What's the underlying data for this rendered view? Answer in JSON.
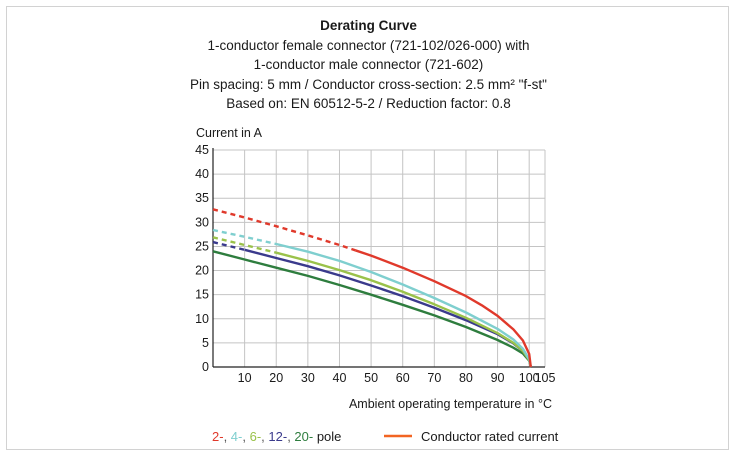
{
  "chart_data": {
    "type": "line",
    "title": "Derating Curve",
    "subtitle_lines": [
      "1-conductor female connector (721-102/026-000) with",
      "1-conductor male connector (721-602)",
      "Pin spacing: 5 mm / Conductor cross-section: 2.5 mm² \"f-st\"",
      "Based on: EN 60512-5-2 / Reduction factor: 0.8"
    ],
    "ylabel": "Current in A",
    "xlabel": "Ambient operating temperature in °C",
    "xlim": [
      0,
      105
    ],
    "ylim": [
      0,
      45
    ],
    "x_ticks": [
      "10",
      "20",
      "30",
      "40",
      "50",
      "60",
      "70",
      "80",
      "90",
      "100",
      "105"
    ],
    "y_ticks": [
      "0",
      "5",
      "10",
      "15",
      "20",
      "25",
      "30",
      "35",
      "40",
      "45"
    ],
    "grid": true,
    "series": [
      {
        "name": "2-",
        "color": "#e0392b",
        "dashed_x": [
          0,
          10,
          20,
          30,
          40,
          45
        ],
        "dashed_y": [
          32.7,
          31.0,
          29.2,
          27.3,
          25.3,
          24.2
        ],
        "solid_x": [
          45,
          50,
          60,
          70,
          80,
          85,
          90,
          95,
          98,
          100,
          100.5
        ],
        "solid_y": [
          24.2,
          23.1,
          20.6,
          17.8,
          14.7,
          12.8,
          10.6,
          7.8,
          5.5,
          2.7,
          0
        ]
      },
      {
        "name": "4-",
        "color": "#7fcfcf",
        "dashed_x": [
          0,
          10,
          20
        ],
        "dashed_y": [
          28.4,
          27.0,
          25.5
        ],
        "solid_x": [
          20,
          30,
          40,
          50,
          60,
          70,
          80,
          90,
          95,
          98,
          100,
          100.5
        ],
        "solid_y": [
          25.5,
          23.9,
          22.0,
          19.7,
          17.1,
          14.3,
          11.3,
          7.9,
          5.7,
          3.8,
          1.6,
          0
        ]
      },
      {
        "name": "6-",
        "color": "#9ac24a",
        "dashed_x": [
          0,
          10,
          20
        ],
        "dashed_y": [
          26.9,
          25.3,
          23.7
        ],
        "solid_x": [
          20,
          30,
          40,
          50,
          60,
          70,
          80,
          90,
          95,
          98,
          100,
          100.5
        ],
        "solid_y": [
          23.7,
          22.0,
          20.1,
          18.0,
          15.6,
          13.0,
          10.2,
          7.0,
          5.0,
          3.3,
          1.4,
          0
        ]
      },
      {
        "name": "12-",
        "color": "#3a3a8c",
        "dashed_x": [
          0,
          10
        ],
        "dashed_y": [
          25.9,
          24.3
        ],
        "solid_x": [
          10,
          20,
          30,
          40,
          50,
          60,
          70,
          80,
          90,
          95,
          98,
          100,
          100.5
        ],
        "solid_y": [
          24.3,
          22.6,
          20.9,
          19.0,
          16.9,
          14.7,
          12.3,
          9.7,
          6.8,
          4.9,
          3.3,
          1.4,
          0
        ]
      },
      {
        "name": "20-",
        "color": "#2e7d3e",
        "dashed_x": [],
        "dashed_y": [],
        "solid_x": [
          0,
          10,
          20,
          30,
          40,
          50,
          60,
          70,
          80,
          90,
          95,
          98,
          100,
          100.5
        ],
        "solid_y": [
          24.0,
          22.3,
          20.6,
          18.9,
          17.0,
          15.0,
          12.9,
          10.7,
          8.3,
          5.6,
          4.0,
          2.8,
          1.3,
          0
        ]
      }
    ],
    "rated_current": {
      "label": "Conductor rated current",
      "color": "#f26522"
    },
    "legend": {
      "pole_items": [
        {
          "text": "2-",
          "color": "#e0392b"
        },
        {
          "text": ", ",
          "color": "#555555"
        },
        {
          "text": "4-",
          "color": "#7fcfcf"
        },
        {
          "text": ", ",
          "color": "#555555"
        },
        {
          "text": "6-",
          "color": "#9ac24a"
        },
        {
          "text": ", ",
          "color": "#555555"
        },
        {
          "text": "12-",
          "color": "#3a3a8c"
        },
        {
          "text": ", ",
          "color": "#555555"
        },
        {
          "text": "20-",
          "color": "#2e7d3e"
        },
        {
          "text": " pole",
          "color": "#1a1a1a"
        }
      ],
      "placement": "bottom"
    }
  }
}
